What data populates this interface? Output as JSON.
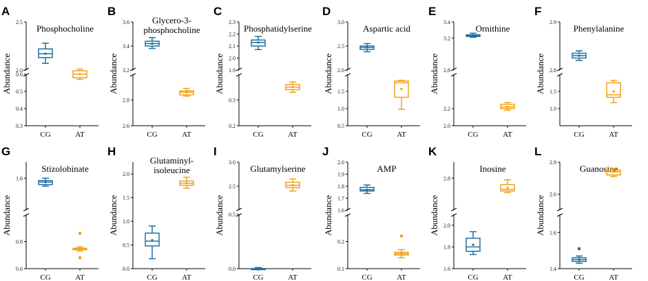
{
  "figure": {
    "colors": {
      "cg": "#1f6f9f",
      "at": "#f0a21a",
      "axis": "#000000"
    }
  },
  "chart_data": [
    {
      "panel": "A",
      "type": "box",
      "title": "Phosphocholine",
      "ylabel": "Abundance",
      "categories": [
        "CG",
        "AT"
      ],
      "ybreak": {
        "upper": {
          "range": [
            2.0,
            2.5
          ],
          "ticks": [
            "2.0",
            "2.5"
          ]
        },
        "lower": {
          "range": [
            0.3,
            0.6
          ],
          "ticks": [
            "0.3",
            "0.4",
            "0.5",
            "0.6"
          ]
        }
      },
      "series": [
        {
          "name": "CG",
          "min": 2.07,
          "q1": 2.13,
          "median": 2.17,
          "q3": 2.22,
          "max": 2.28,
          "mean": 2.17,
          "outliers": []
        },
        {
          "name": "AT",
          "min": 0.57,
          "q1": 0.58,
          "median": 0.6,
          "q3": 0.62,
          "max": 0.63,
          "mean": 0.6,
          "outliers": []
        }
      ]
    },
    {
      "panel": "B",
      "type": "box",
      "title": "Glycero-3-phosphocholine",
      "title_lines": [
        "Glycero-3-",
        "phosphocholine"
      ],
      "ylabel": "Abundance",
      "categories": [
        "CG",
        "AT"
      ],
      "ybreak": {
        "upper": {
          "range": [
            3.2,
            3.6
          ],
          "ticks": [
            "3.2",
            "3.4",
            "3.6"
          ]
        },
        "lower": {
          "range": [
            2.6,
            3.0
          ],
          "ticks": [
            "2.6",
            "2.8"
          ]
        }
      },
      "series": [
        {
          "name": "CG",
          "min": 3.38,
          "q1": 3.4,
          "median": 3.42,
          "q3": 3.44,
          "max": 3.47,
          "mean": 3.42,
          "outliers": []
        },
        {
          "name": "AT",
          "min": 2.83,
          "q1": 2.84,
          "median": 2.86,
          "q3": 2.87,
          "max": 2.89,
          "mean": 2.86,
          "outliers": []
        }
      ]
    },
    {
      "panel": "C",
      "type": "box",
      "title": "Phosphatidylserine",
      "ylabel": "Abundance",
      "categories": [
        "CG",
        "AT"
      ],
      "ybreak": {
        "upper": {
          "range": [
            1.9,
            2.3
          ],
          "ticks": [
            "1.9",
            "2.0",
            "2.1",
            "2.2",
            "2.3"
          ]
        },
        "lower": {
          "range": [
            0.2,
            0.4
          ],
          "ticks": [
            "0.2",
            "0.3"
          ]
        }
      },
      "series": [
        {
          "name": "CG",
          "min": 2.07,
          "q1": 2.1,
          "median": 2.13,
          "q3": 2.15,
          "max": 2.18,
          "mean": 2.13,
          "outliers": []
        },
        {
          "name": "AT",
          "min": 0.33,
          "q1": 0.34,
          "median": 0.35,
          "q3": 0.36,
          "max": 0.37,
          "mean": 0.35,
          "outliers": []
        }
      ]
    },
    {
      "panel": "D",
      "type": "box",
      "title": "Aspartic acid",
      "ylabel": "Abundance",
      "categories": [
        "CG",
        "AT"
      ],
      "ybreak": {
        "upper": {
          "range": [
            2.0,
            3.0
          ],
          "ticks": [
            "2.0",
            "2.5",
            "3.0"
          ]
        },
        "lower": {
          "range": [
            0.5,
            2.0
          ],
          "ticks": [
            "0.5",
            "1.0",
            "1.5"
          ]
        }
      },
      "series": [
        {
          "name": "CG",
          "min": 2.38,
          "q1": 2.43,
          "median": 2.47,
          "q3": 2.5,
          "max": 2.55,
          "mean": 2.47,
          "outliers": []
        },
        {
          "name": "AT",
          "min": 0.98,
          "q1": 1.33,
          "median": 1.75,
          "q3": 1.8,
          "max": 1.82,
          "mean": 1.57,
          "outliers": []
        }
      ]
    },
    {
      "panel": "E",
      "type": "box",
      "title": "Ornithine",
      "ylabel": "Abundance",
      "categories": [
        "CG",
        "AT"
      ],
      "ybreak": {
        "upper": {
          "range": [
            2.8,
            3.4
          ],
          "ticks": [
            "2.8",
            "3.2",
            "3.4"
          ]
        },
        "lower": {
          "range": [
            2.0,
            2.6
          ],
          "ticks": [
            "2.0",
            "2.2"
          ]
        }
      },
      "series": [
        {
          "name": "CG",
          "min": 3.21,
          "q1": 3.22,
          "median": 3.23,
          "q3": 3.24,
          "max": 3.26,
          "mean": 3.23,
          "outliers": []
        },
        {
          "name": "AT",
          "min": 2.18,
          "q1": 2.2,
          "median": 2.22,
          "q3": 2.25,
          "max": 2.27,
          "mean": 2.22,
          "outliers": []
        }
      ]
    },
    {
      "panel": "F",
      "type": "box",
      "title": "Phenylalanine",
      "ylabel": "Abundance",
      "categories": [
        "CG",
        "AT"
      ],
      "ybreak": {
        "upper": {
          "range": [
            2.8,
            2.9
          ],
          "ticks": [
            "2.8",
            "2.9"
          ]
        },
        "lower": {
          "range": [
            0.5,
            2.0
          ],
          "ticks": [
            "1.0",
            "1.5"
          ]
        }
      },
      "series": [
        {
          "name": "CG",
          "min": 2.82,
          "q1": 2.825,
          "median": 2.83,
          "q3": 2.835,
          "max": 2.84,
          "mean": 2.83,
          "outliers": []
        },
        {
          "name": "AT",
          "min": 1.17,
          "q1": 1.33,
          "median": 1.4,
          "q3": 1.75,
          "max": 1.82,
          "mean": 1.5,
          "outliers": []
        }
      ]
    },
    {
      "panel": "G",
      "type": "box",
      "title": "Stizolobinate",
      "ylabel": "Abundance",
      "categories": [
        "CG",
        "AT"
      ],
      "ybreak": {
        "upper": {
          "range": [
            1.2,
            1.8
          ],
          "ticks": [
            "1.6"
          ]
        },
        "lower": {
          "range": [
            0.6,
            1.0
          ],
          "ticks": [
            "0.6",
            "0.8"
          ]
        }
      },
      "series": [
        {
          "name": "CG",
          "min": 1.5,
          "q1": 1.52,
          "median": 1.55,
          "q3": 1.57,
          "max": 1.6,
          "mean": 1.55,
          "outliers": []
        },
        {
          "name": "AT",
          "min": 0.73,
          "q1": 0.74,
          "median": 0.745,
          "q3": 0.75,
          "max": 0.76,
          "mean": 0.745,
          "outliers": [
            0.68,
            0.86
          ]
        }
      ]
    },
    {
      "panel": "H",
      "type": "box",
      "title": "Glutaminyl-isoleucine",
      "title_lines": [
        "Glutaminyl-",
        "isoleucine"
      ],
      "ylabel": "Abundance",
      "categories": [
        "CG",
        "AT"
      ],
      "ybreak": null,
      "yrange": [
        0.0,
        2.25
      ],
      "ticks": [
        "0.0",
        "0.5",
        "1.0",
        "1.5",
        "2.0"
      ],
      "series": [
        {
          "name": "CG",
          "min": 0.21,
          "q1": 0.48,
          "median": 0.58,
          "q3": 0.75,
          "max": 0.9,
          "mean": 0.6,
          "outliers": []
        },
        {
          "name": "AT",
          "min": 1.7,
          "q1": 1.76,
          "median": 1.8,
          "q3": 1.85,
          "max": 1.93,
          "mean": 1.81,
          "outliers": []
        }
      ]
    },
    {
      "panel": "I",
      "type": "box",
      "title": "Glutamylserine",
      "ylabel": "Abundance",
      "categories": [
        "CG",
        "AT"
      ],
      "ybreak": {
        "upper": {
          "range": [
            2.0,
            3.0
          ],
          "ticks": [
            "2.5",
            "3.0"
          ]
        },
        "lower": {
          "range": [
            0.0,
            0.5
          ],
          "ticks": [
            "0.0",
            "0.5"
          ]
        }
      },
      "series": [
        {
          "name": "CG",
          "min": 0.0,
          "q1": 0.0,
          "median": 0.0,
          "q3": 0.0,
          "max": 0.01,
          "mean": 0.0,
          "outliers": []
        },
        {
          "name": "AT",
          "min": 2.4,
          "q1": 2.47,
          "median": 2.52,
          "q3": 2.58,
          "max": 2.65,
          "mean": 2.52,
          "outliers": []
        }
      ]
    },
    {
      "panel": "J",
      "type": "box",
      "title": "AMP",
      "ylabel": "Abundance",
      "categories": [
        "CG",
        "AT"
      ],
      "ybreak": {
        "upper": {
          "range": [
            1.6,
            2.0
          ],
          "ticks": [
            "1.6",
            "1.7",
            "1.8",
            "1.9",
            "2.0"
          ]
        },
        "lower": {
          "range": [
            0.1,
            0.3
          ],
          "ticks": [
            "0.1",
            "0.2"
          ]
        }
      },
      "series": [
        {
          "name": "CG",
          "min": 1.74,
          "q1": 1.76,
          "median": 1.77,
          "q3": 1.79,
          "max": 1.81,
          "mean": 1.77,
          "outliers": []
        },
        {
          "name": "AT",
          "min": 0.14,
          "q1": 0.15,
          "median": 0.155,
          "q3": 0.16,
          "max": 0.17,
          "mean": 0.155,
          "outliers": [
            0.22
          ]
        }
      ]
    },
    {
      "panel": "K",
      "type": "box",
      "title": "Inosine",
      "ylabel": "Abundance",
      "categories": [
        "CG",
        "AT"
      ],
      "ybreak": {
        "upper": {
          "range": [
            2.6,
            2.9
          ],
          "ticks": [
            "2.8"
          ]
        },
        "lower": {
          "range": [
            1.6,
            2.1
          ],
          "ticks": [
            "1.6",
            "1.8",
            "2.0"
          ]
        }
      },
      "series": [
        {
          "name": "CG",
          "min": 1.73,
          "q1": 1.76,
          "median": 1.8,
          "q3": 1.88,
          "max": 1.94,
          "mean": 1.82,
          "outliers": []
        },
        {
          "name": "AT",
          "min": 2.71,
          "q1": 2.72,
          "median": 2.73,
          "q3": 2.76,
          "max": 2.79,
          "mean": 2.74,
          "outliers": []
        }
      ]
    },
    {
      "panel": "L",
      "type": "box",
      "title": "Guanosine",
      "ylabel": "Abundance",
      "categories": [
        "CG",
        "AT"
      ],
      "ybreak": {
        "upper": {
          "range": [
            2.5,
            2.8
          ],
          "ticks": [
            "2.6",
            "2.8"
          ]
        },
        "lower": {
          "range": [
            1.4,
            1.7
          ],
          "ticks": [
            "1.4",
            "1.6"
          ]
        }
      },
      "series": [
        {
          "name": "CG",
          "min": 1.43,
          "q1": 1.44,
          "median": 1.45,
          "q3": 1.46,
          "max": 1.47,
          "mean": 1.45,
          "outliers": [
            1.51
          ]
        },
        {
          "name": "AT",
          "min": 2.71,
          "q1": 2.72,
          "median": 2.74,
          "q3": 2.75,
          "max": 2.76,
          "mean": 2.74,
          "outliers": []
        }
      ]
    }
  ]
}
